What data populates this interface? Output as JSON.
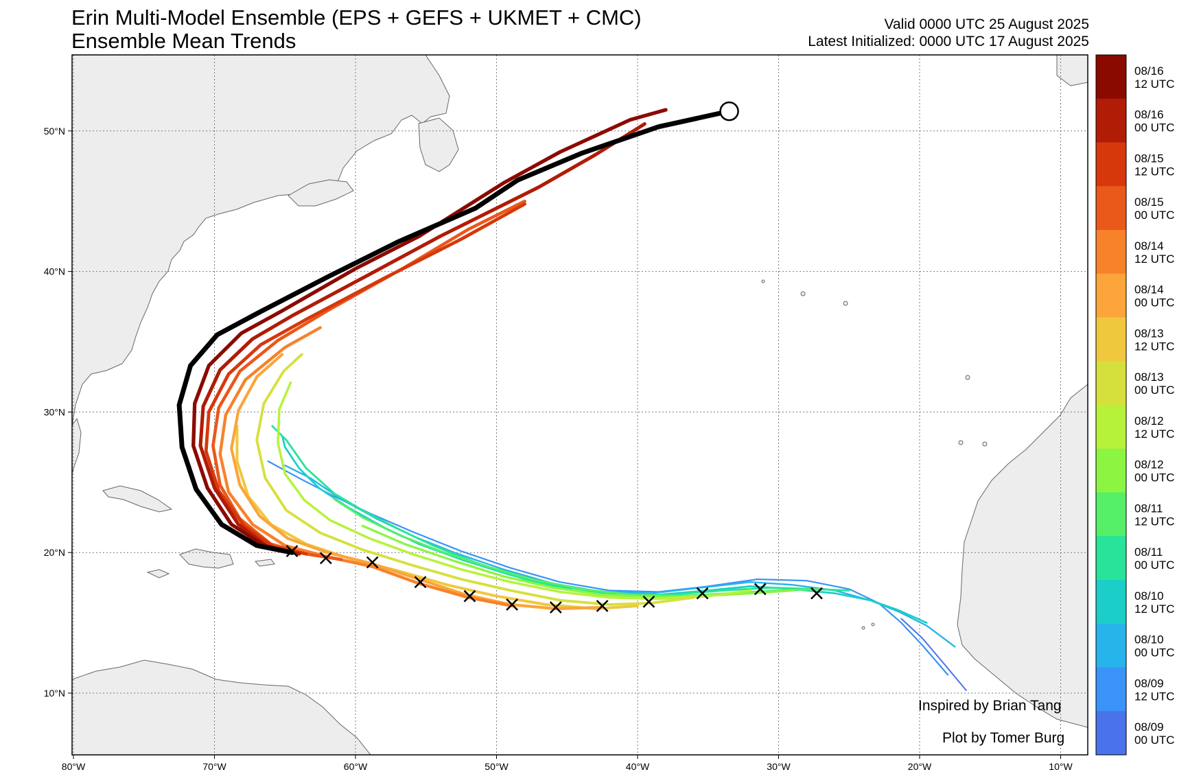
{
  "title": "Erin Multi-Model Ensemble (EPS + GEFS + UKMET + CMC)",
  "subtitle": "Ensemble Mean Trends",
  "valid_time": "Valid 0000 UTC 25 August 2025",
  "latest_init": "Latest Initialized: 0000 UTC 17 August 2025",
  "credits": {
    "inspired": "Inspired by Brian Tang",
    "plot": "Plot by Tomer Burg"
  },
  "axes": {
    "lon_ticks": [
      "80°W",
      "70°W",
      "60°W",
      "50°W",
      "40°W",
      "30°W",
      "20°W",
      "10°W"
    ],
    "lat_ticks": [
      "10°N",
      "20°N",
      "30°N",
      "40°N",
      "50°N"
    ]
  },
  "colorbar": [
    {
      "line1": "08/16",
      "line2": "12 UTC",
      "color": "#8b0a00"
    },
    {
      "line1": "08/16",
      "line2": "00 UTC",
      "color": "#b01c06"
    },
    {
      "line1": "08/15",
      "line2": "12 UTC",
      "color": "#d6380c"
    },
    {
      "line1": "08/15",
      "line2": "00 UTC",
      "color": "#ea581a"
    },
    {
      "line1": "08/14",
      "line2": "12 UTC",
      "color": "#f7822a"
    },
    {
      "line1": "08/14",
      "line2": "00 UTC",
      "color": "#fba53a"
    },
    {
      "line1": "08/13",
      "line2": "12 UTC",
      "color": "#f0c83e"
    },
    {
      "line1": "08/13",
      "line2": "00 UTC",
      "color": "#d6e03c"
    },
    {
      "line1": "08/12",
      "line2": "12 UTC",
      "color": "#b7f23b"
    },
    {
      "line1": "08/12",
      "line2": "00 UTC",
      "color": "#8cf542"
    },
    {
      "line1": "08/11",
      "line2": "12 UTC",
      "color": "#55ef68"
    },
    {
      "line1": "08/11",
      "line2": "00 UTC",
      "color": "#28e49a"
    },
    {
      "line1": "08/10",
      "line2": "12 UTC",
      "color": "#1ccec8"
    },
    {
      "line1": "08/10",
      "line2": "00 UTC",
      "color": "#26b4ea"
    },
    {
      "line1": "08/09",
      "line2": "12 UTC",
      "color": "#3a93f8"
    },
    {
      "line1": "08/09",
      "line2": "00 UTC",
      "color": "#4a72ea"
    }
  ],
  "observed_track": {
    "color": "#000000",
    "points": [
      [
        -64.5,
        20.0
      ],
      [
        -67,
        20.5
      ],
      [
        -69.5,
        22.0
      ],
      [
        -71.3,
        24.5
      ],
      [
        -72.3,
        27.5
      ],
      [
        -72.5,
        30.5
      ],
      [
        -71.7,
        33.3
      ],
      [
        -69.8,
        35.5
      ],
      [
        -67.0,
        37.0
      ],
      [
        -62.0,
        39.6
      ],
      [
        -57.0,
        42.1
      ],
      [
        -51.5,
        44.5
      ],
      [
        -48.5,
        46.5
      ],
      [
        -44.0,
        48.4
      ],
      [
        -38.5,
        50.3
      ],
      [
        -33.5,
        51.4
      ]
    ]
  },
  "x_markers": [
    [
      -64.5,
      20.1
    ],
    [
      -62.1,
      19.6
    ],
    [
      -58.8,
      19.3
    ],
    [
      -55.4,
      17.9
    ],
    [
      -51.9,
      16.9
    ],
    [
      -48.9,
      16.3
    ],
    [
      -45.8,
      16.1
    ],
    [
      -42.5,
      16.2
    ],
    [
      -39.2,
      16.5
    ],
    [
      -35.4,
      17.1
    ],
    [
      -31.3,
      17.4
    ],
    [
      -27.3,
      17.1
    ]
  ],
  "end_marker": [
    -33.5,
    51.4
  ],
  "ensemble_tracks": [
    {
      "run": "08/16 12 UTC",
      "color": "#8b0a00",
      "points": [
        [
          -64.5,
          20.0
        ],
        [
          -66.5,
          20.5
        ],
        [
          -68.8,
          22.0
        ],
        [
          -70.5,
          24.6
        ],
        [
          -71.5,
          27.6
        ],
        [
          -71.4,
          30.6
        ],
        [
          -70.4,
          33.3
        ],
        [
          -68.1,
          35.6
        ],
        [
          -65.2,
          37.2
        ],
        [
          -60.0,
          40.2
        ],
        [
          -55.5,
          42.5
        ],
        [
          -49.5,
          46.3
        ],
        [
          -45.5,
          48.5
        ],
        [
          -40.5,
          50.8
        ],
        [
          -38.0,
          51.5
        ]
      ]
    },
    {
      "run": "08/16 00 UTC",
      "color": "#b01c06",
      "points": [
        [
          -64.0,
          19.9
        ],
        [
          -66.2,
          20.4
        ],
        [
          -68.3,
          22.0
        ],
        [
          -70.0,
          24.6
        ],
        [
          -71.0,
          27.6
        ],
        [
          -70.8,
          30.4
        ],
        [
          -69.6,
          33.0
        ],
        [
          -67.3,
          35.2
        ],
        [
          -64.4,
          36.9
        ],
        [
          -59.0,
          39.8
        ],
        [
          -54.0,
          42.5
        ],
        [
          -47.0,
          46.0
        ],
        [
          -43.0,
          48.3
        ],
        [
          -39.5,
          50.5
        ]
      ]
    },
    {
      "run": "08/15 12 UTC",
      "color": "#d6380c",
      "points": [
        [
          -63.5,
          19.9
        ],
        [
          -65.8,
          20.4
        ],
        [
          -67.9,
          21.9
        ],
        [
          -69.7,
          24.4
        ],
        [
          -70.6,
          27.2
        ],
        [
          -70.4,
          30.0
        ],
        [
          -69.0,
          32.7
        ],
        [
          -66.7,
          34.8
        ],
        [
          -63.3,
          36.7
        ],
        [
          -58.0,
          39.5
        ],
        [
          -52.5,
          42.3
        ],
        [
          -48.0,
          44.8
        ]
      ]
    },
    {
      "run": "08/15 00 UTC",
      "color": "#ea581a",
      "points": [
        [
          -61.0,
          19.5
        ],
        [
          -63.5,
          19.9
        ],
        [
          -66.0,
          20.6
        ],
        [
          -68.2,
          22.4
        ],
        [
          -69.6,
          24.8
        ],
        [
          -70.1,
          27.6
        ],
        [
          -69.7,
          30.3
        ],
        [
          -68.2,
          32.9
        ],
        [
          -65.5,
          35.1
        ],
        [
          -62.0,
          37.2
        ],
        [
          -56.5,
          40.3
        ],
        [
          -52.0,
          43.0
        ],
        [
          -48.0,
          45.0
        ]
      ]
    },
    {
      "run": "08/14 12 UTC",
      "color": "#f7822a",
      "points": [
        [
          -48.9,
          16.2
        ],
        [
          -52.0,
          16.8
        ],
        [
          -55.5,
          17.8
        ],
        [
          -58.8,
          19.0
        ],
        [
          -62.0,
          19.7
        ],
        [
          -65.0,
          20.5
        ],
        [
          -67.3,
          22.0
        ],
        [
          -69.0,
          24.3
        ],
        [
          -69.6,
          27.0
        ],
        [
          -69.2,
          29.8
        ],
        [
          -67.8,
          32.3
        ],
        [
          -65.0,
          34.6
        ],
        [
          -62.5,
          36.0
        ]
      ]
    },
    {
      "run": "08/14 00 UTC",
      "color": "#fba53a",
      "points": [
        [
          -42.5,
          16.1
        ],
        [
          -45.8,
          16.0
        ],
        [
          -49.0,
          16.3
        ],
        [
          -52.2,
          17.0
        ],
        [
          -55.5,
          18.1
        ],
        [
          -58.8,
          19.2
        ],
        [
          -62.0,
          20.0
        ],
        [
          -64.8,
          21.0
        ],
        [
          -66.8,
          22.6
        ],
        [
          -68.2,
          24.8
        ],
        [
          -68.8,
          27.4
        ],
        [
          -68.3,
          30.1
        ],
        [
          -67.0,
          32.5
        ],
        [
          -65.2,
          34.1
        ]
      ]
    },
    {
      "run": "08/13 12 UTC",
      "color": "#f0c83e",
      "points": [
        [
          -40.0,
          16.2
        ],
        [
          -43.0,
          16.0
        ],
        [
          -46.5,
          16.3
        ],
        [
          -50.0,
          16.9
        ],
        [
          -53.5,
          17.7
        ],
        [
          -57.0,
          18.7
        ],
        [
          -60.5,
          19.6
        ],
        [
          -63.5,
          20.6
        ],
        [
          -66.0,
          22.0
        ],
        [
          -67.6,
          24.0
        ],
        [
          -68.4,
          26.5
        ],
        [
          -68.4,
          29.0
        ]
      ]
    },
    {
      "run": "08/13 00 UTC",
      "color": "#d6e03c",
      "points": [
        [
          -36.0,
          16.8
        ],
        [
          -39.0,
          16.4
        ],
        [
          -42.0,
          16.3
        ],
        [
          -45.5,
          16.6
        ],
        [
          -49.0,
          17.3
        ],
        [
          -52.5,
          18.1
        ],
        [
          -56.0,
          19.1
        ],
        [
          -59.5,
          20.2
        ],
        [
          -62.5,
          21.4
        ],
        [
          -64.9,
          23.0
        ],
        [
          -66.4,
          25.3
        ],
        [
          -67.0,
          28.0
        ],
        [
          -66.5,
          30.6
        ],
        [
          -65.1,
          32.9
        ],
        [
          -63.8,
          34.1
        ]
      ]
    },
    {
      "run": "08/12 12 UTC",
      "color": "#b7f23b",
      "points": [
        [
          -32.0,
          17.3
        ],
        [
          -35.0,
          16.9
        ],
        [
          -38.5,
          16.7
        ],
        [
          -42.0,
          16.8
        ],
        [
          -45.5,
          17.2
        ],
        [
          -49.0,
          17.9
        ],
        [
          -52.5,
          18.8
        ],
        [
          -56.0,
          19.9
        ],
        [
          -59.0,
          21.0
        ],
        [
          -61.8,
          22.3
        ],
        [
          -63.6,
          23.7
        ],
        [
          -65.0,
          25.6
        ],
        [
          -65.5,
          27.8
        ],
        [
          -65.4,
          30.2
        ],
        [
          -64.6,
          32.1
        ]
      ]
    },
    {
      "run": "08/12 00 UTC",
      "color": "#8cf542",
      "points": [
        [
          -29.0,
          17.3
        ],
        [
          -32.0,
          17.1
        ],
        [
          -35.5,
          16.9
        ],
        [
          -39.0,
          16.8
        ],
        [
          -42.5,
          17.0
        ],
        [
          -46.0,
          17.5
        ],
        [
          -49.5,
          18.3
        ],
        [
          -53.0,
          19.4
        ],
        [
          -56.5,
          20.6
        ],
        [
          -59.5,
          21.9
        ]
      ]
    },
    {
      "run": "08/11 12 UTC",
      "color": "#55ef68",
      "points": [
        [
          -27.0,
          17.4
        ],
        [
          -30.0,
          17.3
        ],
        [
          -33.5,
          17.1
        ],
        [
          -37.0,
          16.9
        ],
        [
          -40.5,
          17.0
        ],
        [
          -44.0,
          17.4
        ],
        [
          -47.5,
          18.1
        ],
        [
          -51.0,
          19.1
        ],
        [
          -54.0,
          20.1
        ],
        [
          -56.8,
          21.2
        ],
        [
          -59.5,
          22.5
        ],
        [
          -61.5,
          23.8
        ]
      ]
    },
    {
      "run": "08/11 00 UTC",
      "color": "#28e49a",
      "points": [
        [
          -25.0,
          17.3
        ],
        [
          -27.5,
          17.4
        ],
        [
          -30.5,
          17.5
        ],
        [
          -34.0,
          17.3
        ],
        [
          -37.5,
          17.0
        ],
        [
          -41.0,
          16.9
        ],
        [
          -44.5,
          17.3
        ],
        [
          -48.0,
          18.1
        ],
        [
          -51.5,
          19.3
        ],
        [
          -54.5,
          20.5
        ],
        [
          -57.0,
          21.7
        ],
        [
          -59.5,
          23.0
        ],
        [
          -61.5,
          24.2
        ],
        [
          -63.5,
          26.0
        ],
        [
          -64.9,
          28.0
        ],
        [
          -65.9,
          29.0
        ]
      ]
    },
    {
      "run": "08/10 12 UTC",
      "color": "#1ccec8",
      "points": [
        [
          -19.5,
          15.0
        ],
        [
          -21.5,
          15.9
        ],
        [
          -23.5,
          16.6
        ],
        [
          -26.0,
          17.1
        ],
        [
          -29.0,
          17.4
        ],
        [
          -32.0,
          17.6
        ],
        [
          -35.0,
          17.3
        ],
        [
          -38.5,
          17.0
        ],
        [
          -42.0,
          17.1
        ],
        [
          -45.5,
          17.6
        ],
        [
          -49.0,
          18.4
        ],
        [
          -52.5,
          19.5
        ],
        [
          -55.5,
          20.6
        ],
        [
          -58.0,
          21.8
        ],
        [
          -60.5,
          23.2
        ],
        [
          -62.6,
          24.6
        ],
        [
          -64.0,
          26.0
        ],
        [
          -65.0,
          27.5
        ],
        [
          -65.2,
          28.3
        ]
      ]
    },
    {
      "run": "08/10 00 UTC",
      "color": "#26b4ea",
      "points": [
        [
          -17.5,
          13.3
        ],
        [
          -19.5,
          14.8
        ],
        [
          -21.5,
          15.8
        ],
        [
          -23.5,
          16.6
        ],
        [
          -26.0,
          17.3
        ],
        [
          -29.0,
          17.7
        ],
        [
          -32.0,
          17.9
        ],
        [
          -35.5,
          17.5
        ],
        [
          -39.0,
          17.1
        ],
        [
          -42.5,
          17.2
        ],
        [
          -46.0,
          17.8
        ],
        [
          -49.5,
          18.8
        ],
        [
          -53.0,
          20.0
        ],
        [
          -56.0,
          21.2
        ],
        [
          -58.5,
          22.4
        ],
        [
          -61.0,
          23.8
        ],
        [
          -63.2,
          25.3
        ],
        [
          -65.0,
          26.2
        ]
      ]
    },
    {
      "run": "08/09 12 UTC",
      "color": "#3a93f8",
      "points": [
        [
          -18.0,
          11.3
        ],
        [
          -19.8,
          13.4
        ],
        [
          -21.3,
          15.0
        ],
        [
          -22.9,
          16.4
        ],
        [
          -25.0,
          17.4
        ],
        [
          -28.0,
          18.0
        ],
        [
          -31.5,
          18.1
        ],
        [
          -35.0,
          17.6
        ],
        [
          -38.5,
          17.2
        ],
        [
          -42.0,
          17.3
        ],
        [
          -45.5,
          17.9
        ],
        [
          -49.0,
          18.9
        ],
        [
          -52.5,
          20.1
        ],
        [
          -56.0,
          21.5
        ],
        [
          -59.0,
          22.8
        ],
        [
          -61.5,
          24.0
        ],
        [
          -64.0,
          25.3
        ],
        [
          -66.2,
          26.5
        ]
      ]
    },
    {
      "run": "08/09 00 UTC",
      "color": "#4a72ea",
      "points": [
        [
          -16.7,
          10.2
        ],
        [
          -18.2,
          12.0
        ],
        [
          -19.8,
          13.9
        ],
        [
          -21.3,
          15.3
        ]
      ]
    }
  ]
}
